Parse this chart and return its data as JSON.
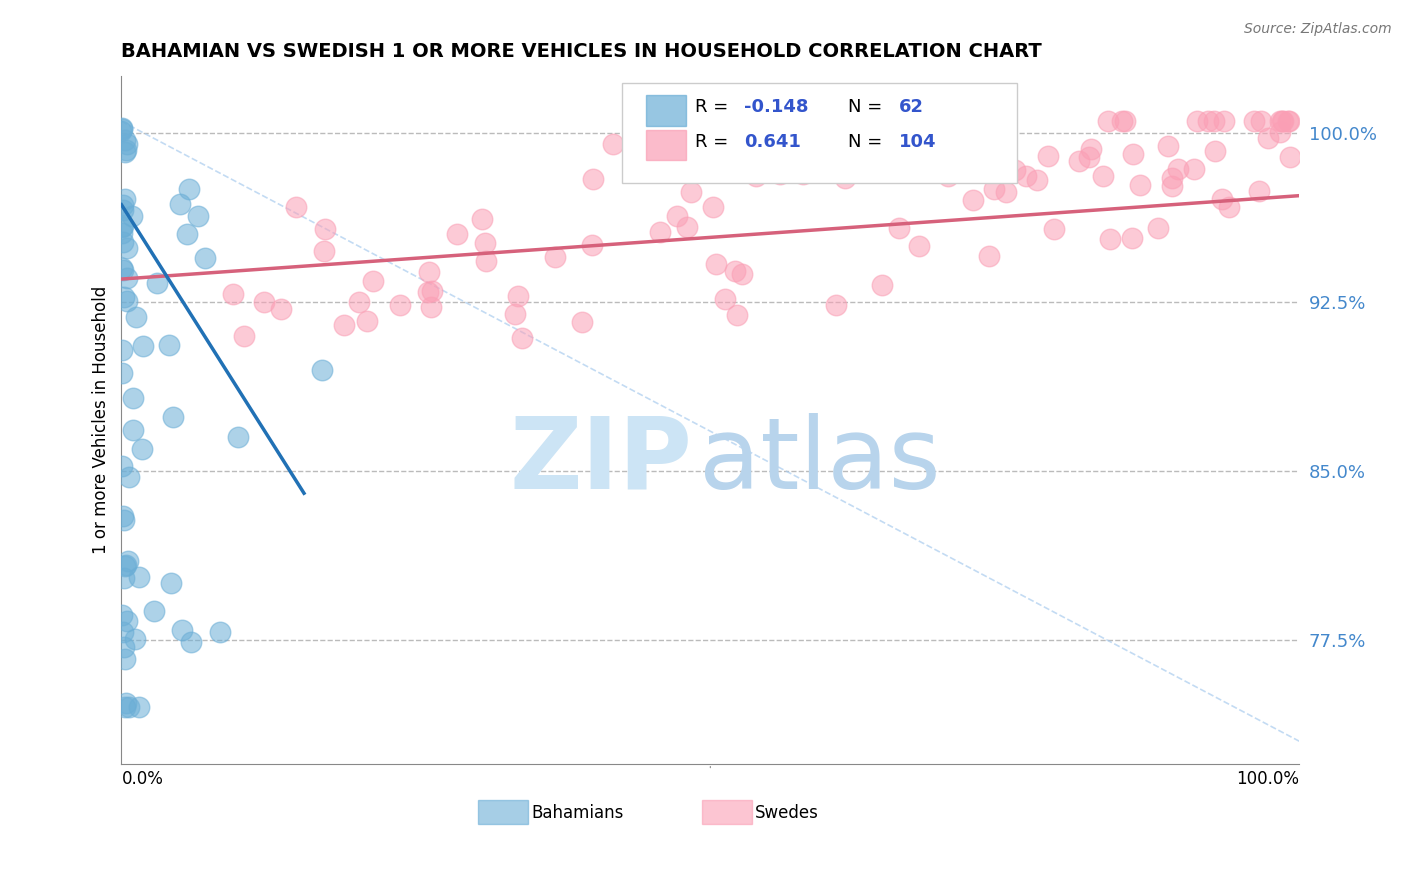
{
  "title": "BAHAMIAN VS SWEDISH 1 OR MORE VEHICLES IN HOUSEHOLD CORRELATION CHART",
  "source_text": "Source: ZipAtlas.com",
  "ylabel": "1 or more Vehicles in Household",
  "y_ticks": [
    0.775,
    0.85,
    0.925,
    1.0
  ],
  "y_tick_labels": [
    "77.5%",
    "85.0%",
    "92.5%",
    "100.0%"
  ],
  "x_lim": [
    0.0,
    1.0
  ],
  "y_lim": [
    0.72,
    1.025
  ],
  "bahamian_color": "#6baed6",
  "swede_color": "#fa9fb5",
  "bahamian_line_color": "#2171b5",
  "swede_line_color": "#d6617b",
  "diagonal_color": "#aaccee",
  "watermark_zip_color": "#cce4f5",
  "watermark_atlas_color": "#b8d4ec",
  "background_color": "#ffffff",
  "tick_label_color": "#4488cc",
  "source_color": "#777777"
}
